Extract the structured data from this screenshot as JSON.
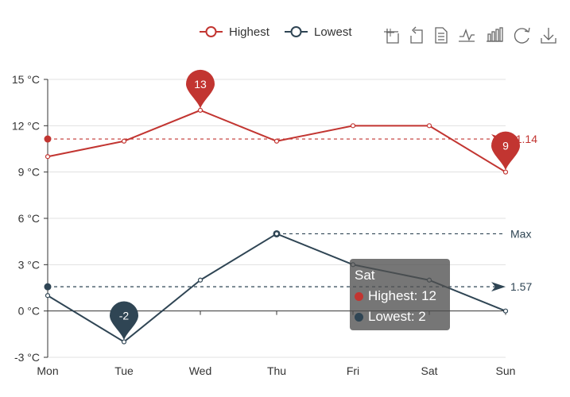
{
  "toolbox": {
    "icons": [
      "rectangle-zoom-icon",
      "restore-icon",
      "data-view-icon",
      "line-chart-icon",
      "bar-chart-icon",
      "refresh-icon",
      "save-image-icon"
    ]
  },
  "chart_data": {
    "type": "line",
    "categories": [
      "Mon",
      "Tue",
      "Wed",
      "Thu",
      "Fri",
      "Sat",
      "Sun"
    ],
    "series": [
      {
        "name": "Highest",
        "color": "#c23531",
        "values": [
          10,
          11,
          13,
          11,
          12,
          12,
          9
        ],
        "mark_points": [
          {
            "label": "13",
            "category": "Wed",
            "value": 13
          },
          {
            "label": "9",
            "category": "Sun",
            "value": 9
          }
        ],
        "mark_line": {
          "label": "11.14",
          "value": 11.14
        }
      },
      {
        "name": "Lowest",
        "color": "#2f4554",
        "values": [
          1,
          -2,
          2,
          5,
          3,
          2,
          0
        ],
        "mark_points": [
          {
            "label": "-2",
            "category": "Tue",
            "value": -2
          }
        ],
        "mark_line": {
          "label": "1.57",
          "value": 1.57
        },
        "max_line": {
          "label": "Max",
          "value": 5,
          "category": "Thu"
        }
      }
    ],
    "y_ticks": [
      "-3 °C",
      "0 °C",
      "3 °C",
      "6 °C",
      "9 °C",
      "12 °C",
      "15 °C"
    ],
    "y_tick_values": [
      -3,
      0,
      3,
      6,
      9,
      12,
      15
    ],
    "ylim": [
      -3,
      15
    ],
    "grid": true,
    "legend_position": "top-right"
  },
  "tooltip": {
    "category": "Sat",
    "rows": [
      {
        "series": "Highest",
        "text": "Highest: 12",
        "color": "#c23531"
      },
      {
        "series": "Lowest",
        "text": "Lowest: 2",
        "color": "#2f4554"
      }
    ]
  }
}
